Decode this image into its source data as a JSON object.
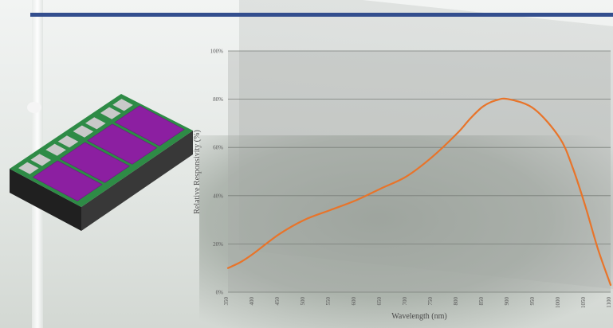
{
  "chart_data": {
    "type": "line",
    "xlabel": "Wavelength (nm)",
    "ylabel": "Relative Responsivity (%)",
    "x_ticks": [
      350,
      400,
      450,
      500,
      550,
      600,
      650,
      700,
      750,
      800,
      850,
      900,
      950,
      1000,
      1050,
      1100
    ],
    "y_ticks": [
      0,
      20,
      40,
      60,
      80,
      100
    ],
    "y_tick_labels": [
      "0%",
      "20%",
      "40%",
      "60%",
      "80%",
      "100%"
    ],
    "xlim": [
      350,
      1100
    ],
    "ylim": [
      0,
      100
    ],
    "grid": true,
    "series": [
      {
        "color": "#e8742a",
        "x": [
          350,
          375,
          400,
          450,
          500,
          550,
          600,
          650,
          700,
          750,
          800,
          825,
          850,
          875,
          900,
          950,
          1000,
          1025,
          1050,
          1075,
          1100
        ],
        "y": [
          10,
          12.5,
          16,
          24,
          30,
          34,
          38,
          43,
          48,
          56,
          66,
          72,
          77,
          79.5,
          80,
          76,
          64,
          52,
          36,
          18,
          3
        ]
      }
    ]
  },
  "colors": {
    "title_rule": "#334e8e",
    "chip_pad": "#8c1fa1",
    "chip_frame": "#2e8b46",
    "chip_body": "#2b2b2b"
  },
  "chip_illustration": {
    "pads": 4,
    "icon": "photodiode-array-chip"
  }
}
